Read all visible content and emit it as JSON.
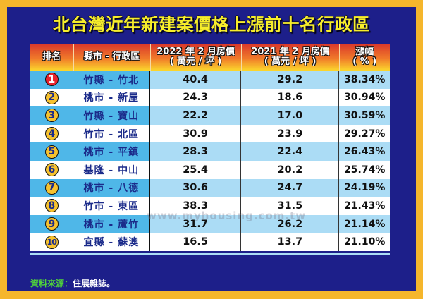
{
  "title": "北台灣近年新建案價格上漲前十名行政區",
  "table": {
    "headers": {
      "rank": "排名",
      "district": "縣市 - 行政區",
      "price_2022_line1": "2022 年 2 月房價",
      "price_2022_line2": "( 萬元 / 坪 )",
      "price_2021_line1": "2021 年 2 月房價",
      "price_2021_line2": "( 萬元 / 坪 )",
      "change_line1": "漲幅",
      "change_line2": "( % )"
    },
    "rows": [
      {
        "rank": "1",
        "district": "竹縣 - 竹北",
        "price_2022": "40.4",
        "price_2021": "29.2",
        "change": "38.34%"
      },
      {
        "rank": "2",
        "district": "桃市 - 新屋",
        "price_2022": "24.3",
        "price_2021": "18.6",
        "change": "30.94%"
      },
      {
        "rank": "3",
        "district": "竹縣 - 寶山",
        "price_2022": "22.2",
        "price_2021": "17.0",
        "change": "30.59%"
      },
      {
        "rank": "4",
        "district": "竹市 - 北區",
        "price_2022": "30.9",
        "price_2021": "23.9",
        "change": "29.27%"
      },
      {
        "rank": "5",
        "district": "桃市 - 平鎮",
        "price_2022": "28.3",
        "price_2021": "22.4",
        "change": "26.43%"
      },
      {
        "rank": "6",
        "district": "基隆 - 中山",
        "price_2022": "25.4",
        "price_2021": "20.2",
        "change": "25.74%"
      },
      {
        "rank": "7",
        "district": "桃市 - 八德",
        "price_2022": "30.6",
        "price_2021": "24.7",
        "change": "24.19%"
      },
      {
        "rank": "8",
        "district": "竹市 - 東區",
        "price_2022": "38.3",
        "price_2021": "31.5",
        "change": "21.43%"
      },
      {
        "rank": "9",
        "district": "桃市 - 蘆竹",
        "price_2022": "31.7",
        "price_2021": "26.2",
        "change": "21.14%"
      },
      {
        "rank": "10",
        "district": "宜縣 - 蘇澳",
        "price_2022": "16.5",
        "price_2021": "13.7",
        "change": "21.10%"
      }
    ]
  },
  "watermark": "www.myhousing.com.tw",
  "footer": {
    "label": "資料來源：",
    "value": "住展雜誌。"
  },
  "colors": {
    "frame": "#F5B62C",
    "background": "#1D1F8A",
    "title": "#F7EE2A",
    "row_highlight": "#ABDCF5",
    "rank_highlight": "#4FB7E8",
    "badge": "#F7C22E",
    "badge_first": "#E8222B",
    "footer_label": "#4FD23A"
  }
}
